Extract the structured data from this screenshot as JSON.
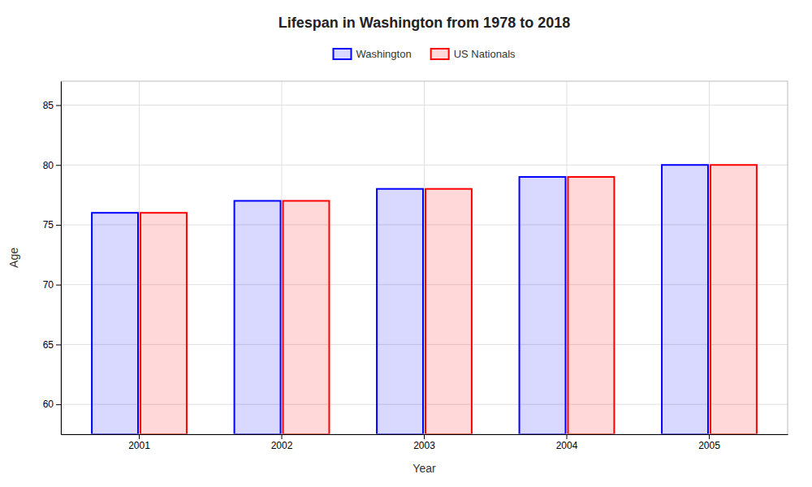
{
  "chart_data": {
    "type": "bar",
    "title": "Lifespan in Washington from 1978 to 2018",
    "x_label": "Year",
    "y_label": "Age",
    "categories": [
      "2001",
      "2002",
      "2003",
      "2004",
      "2005"
    ],
    "series": [
      {
        "name": "Washington",
        "color": "#0000ff",
        "values": [
          76,
          77,
          78,
          79,
          80
        ]
      },
      {
        "name": "US Nationals",
        "color": "#ff0000",
        "values": [
          76,
          77,
          78,
          79,
          80
        ]
      }
    ],
    "ylim": [
      57.5,
      87
    ],
    "yticks": [
      60,
      65,
      70,
      75,
      80,
      85
    ],
    "grid": true,
    "legend": "top"
  }
}
